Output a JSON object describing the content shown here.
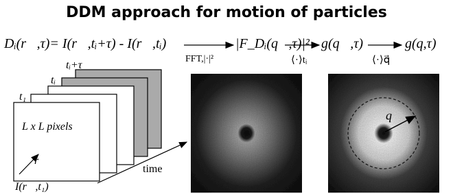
{
  "title": "DDM approach for motion of particles",
  "equation": {
    "difference": "Dᵢ(r⃗,τ)= I(r⃗,tᵢ+τ) - I(r⃗,tᵢ)",
    "step1_label": "FFT,|·|²",
    "power_spectrum": "|F_Dᵢ(q⃗,τ)|²",
    "step2_label": "⟨·⟩tᵢ",
    "structure_function": "g(q⃗,τ)",
    "step3_label": "⟨·⟩q⃗",
    "azimuthal_average": "g(q,τ)"
  },
  "stack": {
    "frame_labels": [
      "t₁",
      "tᵢ",
      "tᵢ+τ"
    ],
    "pixels_label": "L x L pixels",
    "position_label": "r⃗",
    "time_label": "time",
    "intensity_label": "I(r⃗,t₁)"
  },
  "images": {
    "wavevector_label": "q⃗"
  }
}
